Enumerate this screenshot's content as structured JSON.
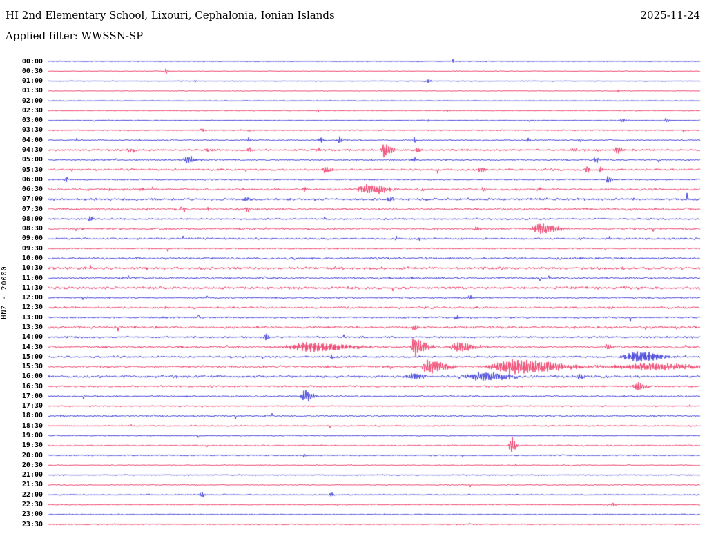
{
  "header": {
    "station_title": "HI 2nd Elementary School, Lixouri, Cephalonia, Ionian Islands",
    "date": "2025-11-24",
    "filter_label": "Applied filter: WWSSN-SP"
  },
  "axis": {
    "ylabel": "HNZ - 20000"
  },
  "colors": {
    "blue": "#0000cc",
    "red": "#e8003c",
    "text": "#000000",
    "background": "#ffffff"
  },
  "chart_data": {
    "type": "line",
    "variant": "helicorder-seismogram",
    "title": "HI 2nd Elementary School, Lixouri, Cephalonia, Ionian Islands",
    "subtitle": "Applied filter: WWSSN-SP",
    "date": "2025-11-24",
    "channel_scale": "HNZ - 20000",
    "row_duration_minutes": 30,
    "grid": false,
    "legend": "none",
    "rows": [
      {
        "t": "00:00",
        "c": "blue",
        "n": 0.8,
        "s": 0.05,
        "ev": [
          [
            0.62,
            1.8,
            2,
            3
          ]
        ]
      },
      {
        "t": "00:30",
        "c": "red",
        "n": 0.8,
        "s": 0.05,
        "ev": [
          [
            0.18,
            4,
            1.5,
            2.5
          ]
        ]
      },
      {
        "t": "01:00",
        "c": "blue",
        "n": 0.8,
        "s": 0.05,
        "ev": [
          [
            0.225,
            1.5,
            2,
            3
          ],
          [
            0.582,
            3.2,
            1.5,
            3
          ]
        ]
      },
      {
        "t": "01:30",
        "c": "red",
        "n": 0.8,
        "s": 0.05,
        "ev": [
          [
            0.874,
            2,
            1.5,
            2.5
          ]
        ]
      },
      {
        "t": "02:00",
        "c": "blue",
        "n": 0.8,
        "s": 0.05,
        "ev": []
      },
      {
        "t": "02:30",
        "c": "red",
        "n": 0.9,
        "s": 0.08,
        "ev": [
          [
            0.413,
            2.4,
            1.5,
            2.5
          ],
          [
            0.614,
            2,
            1.5,
            2.5
          ]
        ]
      },
      {
        "t": "03:00",
        "c": "blue",
        "n": 0.9,
        "s": 0.08,
        "ev": [
          [
            0.582,
            2,
            1.5,
            2.5
          ],
          [
            0.879,
            2.6,
            2,
            6
          ],
          [
            0.948,
            3,
            1.5,
            3
          ]
        ]
      },
      {
        "t": "03:30",
        "c": "red",
        "n": 1.1,
        "s": 0.1,
        "ev": [
          [
            0.236,
            2.6,
            1.5,
            3
          ],
          [
            0.307,
            2,
            1.5,
            2.5
          ]
        ]
      },
      {
        "t": "04:00",
        "c": "blue",
        "n": 1.4,
        "s": 0.15,
        "ev": [
          [
            0.307,
            3,
            1.5,
            3
          ],
          [
            0.418,
            4.5,
            2,
            3
          ],
          [
            0.447,
            4.5,
            2,
            3
          ],
          [
            0.561,
            4,
            1.5,
            3
          ],
          [
            0.736,
            2.5,
            1.5,
            3
          ],
          [
            0.815,
            2,
            1.5,
            3
          ]
        ]
      },
      {
        "t": "04:30",
        "c": "red",
        "n": 2.0,
        "s": 0.3,
        "ev": [
          [
            0.122,
            3,
            2,
            4
          ],
          [
            0.244,
            3,
            2,
            4
          ],
          [
            0.307,
            3.5,
            2,
            4
          ],
          [
            0.413,
            3,
            2,
            4
          ],
          [
            0.514,
            9,
            2,
            10
          ],
          [
            0.565,
            4,
            2,
            5
          ],
          [
            0.805,
            3,
            2,
            4
          ],
          [
            0.871,
            5,
            2,
            7
          ]
        ]
      },
      {
        "t": "05:00",
        "c": "blue",
        "n": 1.7,
        "s": 0.2,
        "ev": [
          [
            0.212,
            5,
            3,
            12
          ],
          [
            0.561,
            3,
            2,
            4
          ],
          [
            0.839,
            4,
            1.5,
            4
          ]
        ]
      },
      {
        "t": "05:30",
        "c": "red",
        "n": 2.0,
        "s": 0.3,
        "ev": [
          [
            0.424,
            5,
            2.5,
            8
          ],
          [
            0.662,
            4,
            2,
            5
          ],
          [
            0.826,
            5,
            1.5,
            3
          ],
          [
            0.847,
            4,
            1.5,
            3
          ]
        ]
      },
      {
        "t": "06:00",
        "c": "blue",
        "n": 1.4,
        "s": 0.15,
        "ev": [
          [
            0.026,
            4,
            1.5,
            3
          ],
          [
            0.858,
            5,
            1.5,
            5
          ]
        ]
      },
      {
        "t": "06:30",
        "c": "red",
        "n": 2.1,
        "s": 0.3,
        "ev": [
          [
            0.095,
            3,
            1.5,
            3
          ],
          [
            0.143,
            3.5,
            1.5,
            3
          ],
          [
            0.392,
            3,
            1.5,
            3
          ],
          [
            0.492,
            6,
            12,
            20
          ],
          [
            0.572,
            3,
            1.5,
            3
          ],
          [
            0.667,
            2.5,
            1.5,
            3
          ],
          [
            0.752,
            2.5,
            1.5,
            3
          ]
        ]
      },
      {
        "t": "07:00",
        "c": "blue",
        "n": 2.5,
        "s": 0.25,
        "ev": [
          [
            0.302,
            4,
            2,
            4
          ],
          [
            0.524,
            3,
            2,
            4
          ]
        ]
      },
      {
        "t": "07:30",
        "c": "red",
        "n": 2.4,
        "s": 0.3,
        "ev": [
          [
            0.207,
            4,
            1.5,
            3
          ],
          [
            0.244,
            3.5,
            1.5,
            3
          ],
          [
            0.305,
            4,
            1.5,
            3
          ]
        ]
      },
      {
        "t": "08:00",
        "c": "blue",
        "n": 1.7,
        "s": 0.15,
        "ev": [
          [
            0.064,
            4,
            1.5,
            3
          ]
        ]
      },
      {
        "t": "08:30",
        "c": "red",
        "n": 2.1,
        "s": 0.25,
        "ev": [
          [
            0.657,
            3,
            2,
            4
          ],
          [
            0.755,
            7,
            8,
            18
          ]
        ]
      },
      {
        "t": "09:00",
        "c": "blue",
        "n": 1.9,
        "s": 0.1,
        "ev": []
      },
      {
        "t": "09:30",
        "c": "red",
        "n": 1.4,
        "s": 0.1,
        "ev": []
      },
      {
        "t": "10:00",
        "c": "blue",
        "n": 2.2,
        "s": 0.1,
        "ev": []
      },
      {
        "t": "10:30",
        "c": "red",
        "n": 2.7,
        "s": 0.1,
        "ev": []
      },
      {
        "t": "11:00",
        "c": "blue",
        "n": 2.2,
        "s": 0.1,
        "ev": []
      },
      {
        "t": "11:30",
        "c": "red",
        "n": 2.7,
        "s": 0.1,
        "ev": []
      },
      {
        "t": "12:00",
        "c": "blue",
        "n": 1.8,
        "s": 0.1,
        "ev": [
          [
            0.646,
            3.2,
            1.5,
            3
          ]
        ]
      },
      {
        "t": "12:30",
        "c": "red",
        "n": 2.2,
        "s": 0.1,
        "ev": []
      },
      {
        "t": "13:00",
        "c": "blue",
        "n": 1.8,
        "s": 0.1,
        "ev": [
          [
            0.625,
            2.8,
            2,
            4
          ]
        ]
      },
      {
        "t": "13:30",
        "c": "red",
        "n": 2.4,
        "s": 0.15,
        "ev": [
          [
            0.561,
            3,
            3,
            6
          ]
        ]
      },
      {
        "t": "14:00",
        "c": "blue",
        "n": 1.9,
        "s": 0.15,
        "ev": [
          [
            0.333,
            5,
            2,
            4
          ]
        ]
      },
      {
        "t": "14:30",
        "c": "red",
        "n": 2.3,
        "s": 0.25,
        "ev": [
          [
            0.408,
            6,
            28,
            38,
            2.6
          ],
          [
            0.561,
            12,
            2.5,
            14
          ],
          [
            0.633,
            6,
            10,
            16
          ],
          [
            0.858,
            4,
            2,
            5
          ]
        ]
      },
      {
        "t": "15:00",
        "c": "blue",
        "n": 1.9,
        "s": 0.15,
        "ev": [
          [
            0.434,
            3,
            1.5,
            3
          ],
          [
            0.911,
            7,
            18,
            22,
            2.6
          ]
        ]
      },
      {
        "t": "15:30",
        "c": "red",
        "n": 2.3,
        "s": 0.2,
        "ev": [
          [
            0.582,
            9,
            5,
            20
          ],
          [
            0.715,
            10,
            22,
            50,
            2.4
          ],
          [
            0.92,
            4,
            40,
            60,
            2.4
          ]
        ]
      },
      {
        "t": "16:00",
        "c": "blue",
        "n": 2.5,
        "s": 0.2,
        "ev": [
          [
            0.561,
            4,
            8,
            12
          ],
          [
            0.667,
            6,
            16,
            26
          ],
          [
            0.813,
            4,
            2,
            6
          ]
        ]
      },
      {
        "t": "16:30",
        "c": "red",
        "n": 1.9,
        "s": 0.15,
        "ev": [
          [
            0.905,
            6,
            5,
            9
          ]
        ]
      },
      {
        "t": "17:00",
        "c": "blue",
        "n": 1.7,
        "s": 0.1,
        "ev": [
          [
            0.392,
            8,
            2.5,
            10
          ]
        ]
      },
      {
        "t": "17:30",
        "c": "red",
        "n": 1.3,
        "s": 0.08,
        "ev": []
      },
      {
        "t": "18:00",
        "c": "blue",
        "n": 1.9,
        "s": 0.1,
        "ev": []
      },
      {
        "t": "18:30",
        "c": "red",
        "n": 1.3,
        "s": 0.08,
        "ev": []
      },
      {
        "t": "19:00",
        "c": "blue",
        "n": 1.1,
        "s": 0.05,
        "ev": []
      },
      {
        "t": "19:30",
        "c": "red",
        "n": 1.3,
        "s": 0.08,
        "ev": [
          [
            0.71,
            13,
            2,
            5
          ]
        ]
      },
      {
        "t": "20:00",
        "c": "blue",
        "n": 1.3,
        "s": 0.08,
        "ev": [
          [
            0.392,
            3,
            1.5,
            3
          ]
        ]
      },
      {
        "t": "20:30",
        "c": "red",
        "n": 1.2,
        "s": 0.08,
        "ev": []
      },
      {
        "t": "21:00",
        "c": "blue",
        "n": 1.1,
        "s": 0.05,
        "ev": []
      },
      {
        "t": "21:30",
        "c": "red",
        "n": 1.1,
        "s": 0.05,
        "ev": []
      },
      {
        "t": "22:00",
        "c": "blue",
        "n": 1.1,
        "s": 0.08,
        "ev": [
          [
            0.235,
            5,
            1.5,
            3
          ],
          [
            0.434,
            4,
            1.5,
            3
          ]
        ]
      },
      {
        "t": "22:30",
        "c": "red",
        "n": 1.1,
        "s": 0.08,
        "ev": [
          [
            0.866,
            3,
            1.5,
            3
          ]
        ]
      },
      {
        "t": "23:00",
        "c": "blue",
        "n": 1.1,
        "s": 0.05,
        "ev": []
      },
      {
        "t": "23:30",
        "c": "red",
        "n": 1.1,
        "s": 0.05,
        "ev": []
      }
    ]
  }
}
